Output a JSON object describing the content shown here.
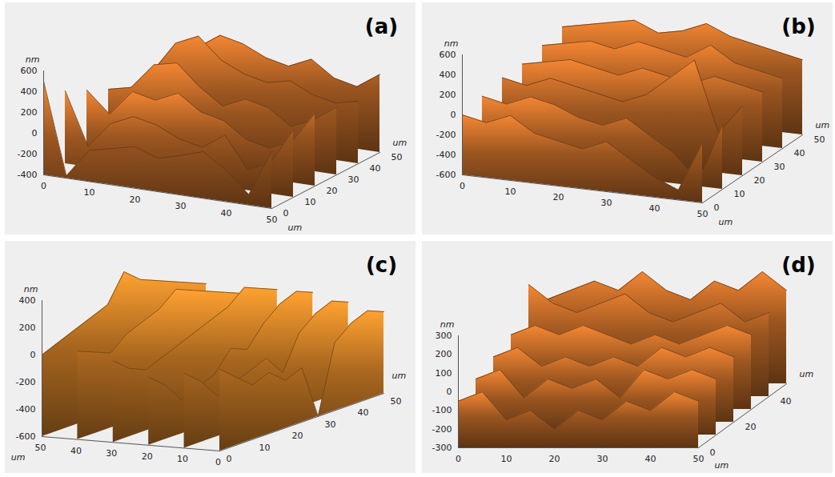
{
  "chart_data": [
    {
      "type": "surface",
      "title": "(a)",
      "color": "#9a5520",
      "xlabel": "um",
      "ylabel": "um",
      "zlabel": "nm",
      "xlim": [
        0,
        50
      ],
      "ylim": [
        0,
        50
      ],
      "zlim": [
        -400,
        600
      ],
      "xticks": [
        0,
        10,
        20,
        30,
        40,
        50
      ],
      "yticks": [
        0,
        10,
        20,
        30,
        40,
        50
      ],
      "zticks": [
        -400,
        -200,
        0,
        200,
        400,
        600
      ],
      "x": [
        0,
        5,
        10,
        15,
        20,
        25,
        30,
        35,
        40,
        45,
        50
      ],
      "y": [
        0,
        10,
        20,
        30,
        40,
        50
      ],
      "z": [
        [
          500,
          -380,
          -100,
          -50,
          0,
          -80,
          -20,
          50,
          -100,
          -300,
          150
        ],
        [
          300,
          -200,
          50,
          150,
          100,
          0,
          -50,
          100,
          -200,
          -100,
          250
        ],
        [
          200,
          0,
          250,
          200,
          300,
          150,
          100,
          -50,
          -100,
          0,
          300
        ],
        [
          100,
          150,
          400,
          450,
          250,
          100,
          200,
          150,
          0,
          100,
          250
        ],
        [
          0,
          200,
          500,
          600,
          400,
          300,
          250,
          300,
          200,
          150,
          200
        ],
        [
          -100,
          100,
          350,
          500,
          450,
          350,
          300,
          400,
          250,
          200,
          350
        ]
      ]
    },
    {
      "type": "surface",
      "title": "(b)",
      "color": "#9a5520",
      "xlabel": "um",
      "ylabel": "um",
      "zlabel": "nm",
      "xlim": [
        0,
        50
      ],
      "ylim": [
        0,
        50
      ],
      "zlim": [
        -600,
        600
      ],
      "xticks": [
        0,
        10,
        20,
        30,
        40,
        50
      ],
      "yticks": [
        0,
        10,
        20,
        30,
        40,
        50
      ],
      "zticks": [
        -600,
        -400,
        -200,
        0,
        200,
        400,
        600
      ],
      "x": [
        0,
        5,
        10,
        15,
        20,
        25,
        30,
        35,
        40,
        45,
        50
      ],
      "y": [
        0,
        10,
        20,
        30,
        40,
        50
      ],
      "z": [
        [
          0,
          -50,
          50,
          -100,
          -150,
          -200,
          -100,
          -250,
          -400,
          -500,
          0
        ],
        [
          50,
          0,
          100,
          50,
          -50,
          -100,
          0,
          -150,
          -300,
          -550,
          50
        ],
        [
          100,
          50,
          150,
          100,
          50,
          0,
          100,
          300,
          500,
          -200,
          100
        ],
        [
          100,
          150,
          200,
          150,
          100,
          200,
          150,
          100,
          200,
          150,
          100
        ],
        [
          150,
          200,
          250,
          200,
          300,
          250,
          200,
          350,
          200,
          150,
          100
        ],
        [
          200,
          250,
          300,
          350,
          250,
          300,
          400,
          300,
          250,
          200,
          150
        ]
      ]
    },
    {
      "type": "surface",
      "title": "(c)",
      "color": "#a8661f",
      "xlabel": "um",
      "ylabel": "um",
      "zlabel": "nm",
      "xlim": [
        0,
        50
      ],
      "ylim": [
        0,
        50
      ],
      "zlim": [
        -600,
        400
      ],
      "xticks": [
        0,
        10,
        20,
        30,
        40,
        50
      ],
      "yticks": [
        0,
        10,
        20,
        30,
        40,
        50
      ],
      "zticks": [
        -600,
        -400,
        -200,
        0,
        200,
        400
      ],
      "x": [
        0,
        5,
        10,
        15,
        20,
        25,
        30,
        35,
        40,
        45,
        50
      ],
      "y": [
        0,
        10,
        20,
        30,
        40,
        50
      ],
      "z": [
        [
          0,
          -100,
          -200,
          -150,
          -250,
          -200,
          -600,
          -100,
          0,
          50,
          0
        ],
        [
          -50,
          -150,
          -300,
          -250,
          -200,
          -150,
          -300,
          -50,
          50,
          100,
          50
        ],
        [
          -100,
          -200,
          -350,
          -300,
          -250,
          -100,
          -150,
          0,
          100,
          150,
          100
        ],
        [
          0,
          -100,
          -150,
          -100,
          -50,
          0,
          50,
          100,
          200,
          150,
          100
        ],
        [
          50,
          0,
          -50,
          50,
          100,
          150,
          250,
          200,
          150,
          100,
          50
        ],
        [
          0,
          50,
          100,
          150,
          200,
          400,
          300,
          250,
          200,
          150,
          100
        ]
      ]
    },
    {
      "type": "surface",
      "title": "(d)",
      "color": "#9a5520",
      "xlabel": "um",
      "ylabel": "um",
      "zlabel": "nm",
      "xlim": [
        0,
        50
      ],
      "ylim": [
        0,
        50
      ],
      "zlim": [
        -300,
        300
      ],
      "xticks": [
        0,
        10,
        20,
        30,
        40,
        50
      ],
      "yticks": [
        0,
        20,
        40
      ],
      "zticks": [
        -300,
        -200,
        -100,
        0,
        100,
        200,
        300
      ],
      "x": [
        0,
        5,
        10,
        15,
        20,
        25,
        30,
        35,
        40,
        45,
        50
      ],
      "y": [
        0,
        10,
        20,
        30,
        40,
        50
      ],
      "z": [
        [
          -50,
          0,
          -150,
          -100,
          -200,
          -100,
          -150,
          -50,
          -100,
          0,
          -50
        ],
        [
          0,
          50,
          -100,
          0,
          -50,
          0,
          -100,
          50,
          0,
          50,
          0
        ],
        [
          50,
          100,
          0,
          50,
          0,
          50,
          0,
          100,
          50,
          100,
          50
        ],
        [
          100,
          150,
          100,
          150,
          100,
          50,
          100,
          50,
          100,
          150,
          100
        ],
        [
          300,
          200,
          150,
          200,
          250,
          150,
          100,
          150,
          200,
          100,
          150
        ],
        [
          150,
          200,
          250,
          200,
          300,
          200,
          150,
          250,
          200,
          300,
          200
        ]
      ]
    }
  ]
}
